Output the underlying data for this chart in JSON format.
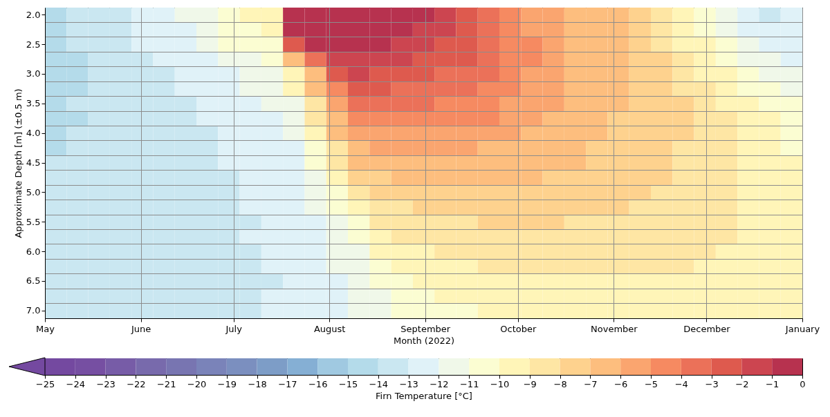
{
  "chart_data": {
    "type": "heatmap",
    "xlabel": "Month (2022)",
    "ylabel": "Approximate Depth [m] (±0.5 m)",
    "clabel": "Firn Temperature [°C]",
    "x": [
      "2022-05-04T12:00",
      "2022-05-11T12:00",
      "2022-05-18T12:00",
      "2022-05-25T12:00",
      "2022-06-01T12:00",
      "2022-06-08T12:00",
      "2022-06-15T12:00",
      "2022-06-22T12:00",
      "2022-06-29T12:00",
      "2022-07-06T12:00",
      "2022-07-13T12:00",
      "2022-07-20T12:00",
      "2022-07-27T12:00",
      "2022-08-03T12:00",
      "2022-08-10T12:00",
      "2022-08-17T12:00",
      "2022-08-24T12:00",
      "2022-08-31T12:00",
      "2022-09-07T12:00",
      "2022-09-14T12:00",
      "2022-09-21T12:00",
      "2022-09-28T12:00",
      "2022-10-05T12:00",
      "2022-10-12T12:00",
      "2022-10-19T12:00",
      "2022-10-26T12:00",
      "2022-11-02T12:00",
      "2022-11-09T12:00",
      "2022-11-16T12:00",
      "2022-11-23T12:00",
      "2022-11-30T12:00",
      "2022-12-07T12:00",
      "2022-12-14T12:00",
      "2022-12-21T12:00",
      "2022-12-28T12:00"
    ],
    "xlim": [
      "2022-05-01",
      "2023-01-01"
    ],
    "xticks": [
      {
        "value": "2022-05-01",
        "label": "May"
      },
      {
        "value": "2022-06-01",
        "label": "June"
      },
      {
        "value": "2022-07-01",
        "label": "July"
      },
      {
        "value": "2022-08-01",
        "label": "August"
      },
      {
        "value": "2022-09-01",
        "label": "September"
      },
      {
        "value": "2022-10-01",
        "label": "October"
      },
      {
        "value": "2022-11-01",
        "label": "November"
      },
      {
        "value": "2022-12-01",
        "label": "December"
      },
      {
        "value": "2023-01-01",
        "label": "January"
      }
    ],
    "y_categories": [
      "2.0",
      null,
      "2.5",
      null,
      "3.0",
      null,
      "3.5",
      null,
      "4.0",
      null,
      "4.5",
      null,
      "5.0",
      null,
      "5.5",
      null,
      "6.0",
      null,
      "6.5",
      null,
      "7.0"
    ],
    "cells": [
      [
        -14.5,
        -13.5,
        -13.5,
        -13.5,
        -12.5,
        -12.5,
        -11.5,
        -11.5,
        -10.5,
        -9.5,
        -9.5,
        -0.5,
        -0.5,
        -0.5,
        -0.5,
        -0.5,
        -0.5,
        -0.5,
        -1.5,
        -2.5,
        -3.5,
        -4.5,
        -5.5,
        -5.5,
        -6.5,
        -6.5,
        -6.5,
        -7.5,
        -8.5,
        -9.5,
        -10.5,
        -11.5,
        -12.5,
        -13.5,
        -12.5
      ],
      [
        -14.5,
        -13.5,
        -13.5,
        -13.5,
        -12.5,
        -12.5,
        -12.5,
        -11.5,
        -10.5,
        -10.5,
        -9.5,
        -0.5,
        -0.5,
        -0.5,
        -0.5,
        -0.5,
        -0.5,
        -1.5,
        -1.5,
        -2.5,
        -3.5,
        -4.5,
        -5.5,
        -5.5,
        -6.5,
        -6.5,
        -6.5,
        -7.5,
        -8.5,
        -9.5,
        -10.5,
        -11.5,
        -12.5,
        -12.5,
        -12.5
      ],
      [
        -14.5,
        -13.5,
        -13.5,
        -13.5,
        -12.5,
        -12.5,
        -12.5,
        -11.5,
        -10.5,
        -10.5,
        -10.5,
        -2.5,
        -0.5,
        -0.5,
        -0.5,
        -0.5,
        -1.5,
        -1.5,
        -2.5,
        -2.5,
        -3.5,
        -4.5,
        -4.5,
        -5.5,
        -6.5,
        -6.5,
        -6.5,
        -7.5,
        -8.5,
        -9.5,
        -9.5,
        -10.5,
        -11.5,
        -12.5,
        -12.5
      ],
      [
        -14.5,
        -14.5,
        -13.5,
        -13.5,
        -13.5,
        -12.5,
        -12.5,
        -12.5,
        -11.5,
        -11.5,
        -10.5,
        -6.5,
        -3.5,
        -1.5,
        -1.5,
        -1.5,
        -1.5,
        -2.5,
        -2.5,
        -2.5,
        -3.5,
        -4.5,
        -4.5,
        -5.5,
        -6.5,
        -6.5,
        -6.5,
        -7.5,
        -7.5,
        -8.5,
        -9.5,
        -10.5,
        -11.5,
        -11.5,
        -12.5
      ],
      [
        -14.5,
        -14.5,
        -13.5,
        -13.5,
        -13.5,
        -13.5,
        -12.5,
        -12.5,
        -12.5,
        -11.5,
        -11.5,
        -9.5,
        -6.5,
        -2.5,
        -1.5,
        -2.5,
        -2.5,
        -2.5,
        -3.5,
        -3.5,
        -3.5,
        -4.5,
        -5.5,
        -5.5,
        -6.5,
        -6.5,
        -6.5,
        -7.5,
        -7.5,
        -8.5,
        -9.5,
        -9.5,
        -10.5,
        -11.5,
        -11.5
      ],
      [
        -14.5,
        -14.5,
        -13.5,
        -13.5,
        -13.5,
        -13.5,
        -12.5,
        -12.5,
        -12.5,
        -11.5,
        -11.5,
        -9.5,
        -6.5,
        -4.5,
        -2.5,
        -2.5,
        -3.5,
        -3.5,
        -3.5,
        -3.5,
        -4.5,
        -4.5,
        -5.5,
        -5.5,
        -6.5,
        -6.5,
        -6.5,
        -7.5,
        -7.5,
        -8.5,
        -8.5,
        -9.5,
        -10.5,
        -10.5,
        -11.5
      ],
      [
        -14.5,
        -13.5,
        -13.5,
        -13.5,
        -13.5,
        -13.5,
        -13.5,
        -12.5,
        -12.5,
        -12.5,
        -11.5,
        -11.5,
        -8.5,
        -5.5,
        -3.5,
        -3.5,
        -3.5,
        -3.5,
        -4.5,
        -4.5,
        -4.5,
        -5.5,
        -5.5,
        -5.5,
        -6.5,
        -6.5,
        -6.5,
        -7.5,
        -7.5,
        -7.5,
        -8.5,
        -9.5,
        -9.5,
        -10.5,
        -10.5
      ],
      [
        -14.5,
        -14.5,
        -13.5,
        -13.5,
        -13.5,
        -13.5,
        -13.5,
        -12.5,
        -12.5,
        -12.5,
        -12.5,
        -11.5,
        -8.5,
        -6.5,
        -4.5,
        -4.5,
        -4.5,
        -4.5,
        -4.5,
        -4.5,
        -4.5,
        -5.5,
        -5.5,
        -6.5,
        -6.5,
        -6.5,
        -7.5,
        -7.5,
        -7.5,
        -7.5,
        -8.5,
        -8.5,
        -9.5,
        -9.5,
        -10.5
      ],
      [
        -14.5,
        -13.5,
        -13.5,
        -13.5,
        -13.5,
        -13.5,
        -13.5,
        -13.5,
        -12.5,
        -12.5,
        -12.5,
        -11.5,
        -9.5,
        -6.5,
        -5.5,
        -5.5,
        -5.5,
        -5.5,
        -5.5,
        -5.5,
        -5.5,
        -5.5,
        -6.5,
        -6.5,
        -6.5,
        -6.5,
        -7.5,
        -7.5,
        -7.5,
        -7.5,
        -8.5,
        -8.5,
        -9.5,
        -9.5,
        -10.5
      ],
      [
        -14.5,
        -13.5,
        -13.5,
        -13.5,
        -13.5,
        -13.5,
        -13.5,
        -13.5,
        -12.5,
        -12.5,
        -12.5,
        -12.5,
        -10.5,
        -8.5,
        -6.5,
        -5.5,
        -5.5,
        -5.5,
        -5.5,
        -5.5,
        -6.5,
        -6.5,
        -6.5,
        -6.5,
        -6.5,
        -7.5,
        -7.5,
        -7.5,
        -7.5,
        -8.5,
        -8.5,
        -8.5,
        -9.5,
        -9.5,
        -10.5
      ],
      [
        -13.5,
        -13.5,
        -13.5,
        -13.5,
        -13.5,
        -13.5,
        -13.5,
        -13.5,
        -12.5,
        -12.5,
        -12.5,
        -12.5,
        -10.5,
        -8.5,
        -6.5,
        -6.5,
        -6.5,
        -6.5,
        -6.5,
        -6.5,
        -6.5,
        -6.5,
        -6.5,
        -6.5,
        -6.5,
        -7.5,
        -7.5,
        -7.5,
        -7.5,
        -8.5,
        -8.5,
        -8.5,
        -9.5,
        -9.5,
        -9.5
      ],
      [
        -13.5,
        -13.5,
        -13.5,
        -13.5,
        -13.5,
        -13.5,
        -13.5,
        -13.5,
        -13.5,
        -12.5,
        -12.5,
        -12.5,
        -11.5,
        -9.5,
        -7.5,
        -7.5,
        -6.5,
        -6.5,
        -6.5,
        -6.5,
        -6.5,
        -6.5,
        -6.5,
        -7.5,
        -7.5,
        -7.5,
        -7.5,
        -7.5,
        -7.5,
        -8.5,
        -8.5,
        -8.5,
        -9.5,
        -9.5,
        -9.5
      ],
      [
        -13.5,
        -13.5,
        -13.5,
        -13.5,
        -13.5,
        -13.5,
        -13.5,
        -13.5,
        -13.5,
        -12.5,
        -12.5,
        -12.5,
        -11.5,
        -10.5,
        -8.5,
        -7.5,
        -7.5,
        -7.5,
        -7.5,
        -7.5,
        -7.5,
        -7.5,
        -7.5,
        -7.5,
        -7.5,
        -7.5,
        -7.5,
        -7.5,
        -8.5,
        -8.5,
        -8.5,
        -8.5,
        -9.5,
        -9.5,
        -9.5
      ],
      [
        -13.5,
        -13.5,
        -13.5,
        -13.5,
        -13.5,
        -13.5,
        -13.5,
        -13.5,
        -13.5,
        -12.5,
        -12.5,
        -12.5,
        -11.5,
        -10.5,
        -9.5,
        -8.5,
        -8.5,
        -7.5,
        -7.5,
        -7.5,
        -7.5,
        -7.5,
        -7.5,
        -7.5,
        -7.5,
        -7.5,
        -7.5,
        -8.5,
        -8.5,
        -8.5,
        -8.5,
        -8.5,
        -9.5,
        -9.5,
        -9.5
      ],
      [
        -13.5,
        -13.5,
        -13.5,
        -13.5,
        -13.5,
        -13.5,
        -13.5,
        -13.5,
        -13.5,
        -13.5,
        -12.5,
        -12.5,
        -12.5,
        -11.5,
        -10.5,
        -8.5,
        -8.5,
        -8.5,
        -8.5,
        -8.5,
        -7.5,
        -7.5,
        -7.5,
        -7.5,
        -8.5,
        -8.5,
        -8.5,
        -8.5,
        -8.5,
        -8.5,
        -8.5,
        -8.5,
        -9.5,
        -9.5,
        -9.5
      ],
      [
        -13.5,
        -13.5,
        -13.5,
        -13.5,
        -13.5,
        -13.5,
        -13.5,
        -13.5,
        -13.5,
        -12.5,
        -12.5,
        -12.5,
        -12.5,
        -11.5,
        -10.5,
        -9.5,
        -8.5,
        -8.5,
        -8.5,
        -8.5,
        -8.5,
        -8.5,
        -8.5,
        -8.5,
        -8.5,
        -8.5,
        -8.5,
        -8.5,
        -8.5,
        -8.5,
        -8.5,
        -8.5,
        -9.5,
        -9.5,
        -9.5
      ],
      [
        -13.5,
        -13.5,
        -13.5,
        -13.5,
        -13.5,
        -13.5,
        -13.5,
        -13.5,
        -13.5,
        -13.5,
        -12.5,
        -12.5,
        -12.5,
        -11.5,
        -11.5,
        -9.5,
        -9.5,
        -9.5,
        -8.5,
        -8.5,
        -8.5,
        -8.5,
        -8.5,
        -8.5,
        -8.5,
        -8.5,
        -8.5,
        -8.5,
        -8.5,
        -8.5,
        -8.5,
        -9.5,
        -9.5,
        -9.5,
        -9.5
      ],
      [
        -13.5,
        -13.5,
        -13.5,
        -13.5,
        -13.5,
        -13.5,
        -13.5,
        -13.5,
        -13.5,
        -13.5,
        -12.5,
        -12.5,
        -12.5,
        -11.5,
        -11.5,
        -10.5,
        -9.5,
        -9.5,
        -9.5,
        -9.5,
        -8.5,
        -8.5,
        -8.5,
        -8.5,
        -8.5,
        -8.5,
        -8.5,
        -8.5,
        -8.5,
        -8.5,
        -9.5,
        -9.5,
        -9.5,
        -9.5,
        -9.5
      ],
      [
        -13.5,
        -13.5,
        -13.5,
        -13.5,
        -13.5,
        -13.5,
        -13.5,
        -13.5,
        -13.5,
        -13.5,
        -13.5,
        -12.5,
        -12.5,
        -12.5,
        -11.5,
        -10.5,
        -10.5,
        -9.5,
        -9.5,
        -9.5,
        -9.5,
        -9.5,
        -9.5,
        -9.5,
        -9.5,
        -9.5,
        -9.5,
        -9.5,
        -9.5,
        -9.5,
        -9.5,
        -9.5,
        -9.5,
        -9.5,
        -9.5
      ],
      [
        -13.5,
        -13.5,
        -13.5,
        -13.5,
        -13.5,
        -13.5,
        -13.5,
        -13.5,
        -13.5,
        -13.5,
        -12.5,
        -12.5,
        -12.5,
        -12.5,
        -11.5,
        -11.5,
        -10.5,
        -10.5,
        -9.5,
        -9.5,
        -9.5,
        -9.5,
        -9.5,
        -9.5,
        -9.5,
        -9.5,
        -9.5,
        -9.5,
        -9.5,
        -9.5,
        -9.5,
        -9.5,
        -9.5,
        -9.5,
        -9.5
      ],
      [
        -13.5,
        -13.5,
        -13.5,
        -13.5,
        -13.5,
        -13.5,
        -13.5,
        -13.5,
        -13.5,
        -13.5,
        -12.5,
        -12.5,
        -12.5,
        -12.5,
        -11.5,
        -11.5,
        -10.5,
        -10.5,
        -10.5,
        -10.5,
        -9.5,
        -9.5,
        -9.5,
        -9.5,
        -9.5,
        -9.5,
        -9.5,
        -9.5,
        -9.5,
        -9.5,
        -9.5,
        -9.5,
        -9.5,
        -9.5,
        -9.5
      ]
    ],
    "clim": [
      -25,
      0
    ],
    "cticks": [
      {
        "value": -25,
        "label": "−25"
      },
      {
        "value": -24,
        "label": "−24"
      },
      {
        "value": -23,
        "label": "−23"
      },
      {
        "value": -22,
        "label": "−22"
      },
      {
        "value": -21,
        "label": "−21"
      },
      {
        "value": -20,
        "label": "−20"
      },
      {
        "value": -19,
        "label": "−19"
      },
      {
        "value": -18,
        "label": "−18"
      },
      {
        "value": -17,
        "label": "−17"
      },
      {
        "value": -16,
        "label": "−16"
      },
      {
        "value": -15,
        "label": "−15"
      },
      {
        "value": -14,
        "label": "−14"
      },
      {
        "value": -13,
        "label": "−13"
      },
      {
        "value": -12,
        "label": "−12"
      },
      {
        "value": -11,
        "label": "−11"
      },
      {
        "value": -10,
        "label": "−10"
      },
      {
        "value": -9,
        "label": "−9"
      },
      {
        "value": -8,
        "label": "−8"
      },
      {
        "value": -7,
        "label": "−7"
      },
      {
        "value": -6,
        "label": "−6"
      },
      {
        "value": -5,
        "label": "−5"
      },
      {
        "value": -4,
        "label": "−4"
      },
      {
        "value": -3,
        "label": "−3"
      },
      {
        "value": -2,
        "label": "−2"
      },
      {
        "value": -1,
        "label": "−1"
      },
      0
    ],
    "colors": [
      "#7449a0",
      "#764fa2",
      "#775ca7",
      "#786aac",
      "#7875b1",
      "#7a83b9",
      "#7b8fbf",
      "#7d9dc7",
      "#85afd4",
      "#a0c9e1",
      "#b4dbea",
      "#cae7f1",
      "#e0f2f8",
      "#f0f8e9",
      "#fbfdd2",
      "#fff5b8",
      "#fee6a4",
      "#fed28e",
      "#fdbe7e",
      "#faa56f",
      "#f68a61",
      "#eb7159",
      "#de5a4e",
      "#cc4550",
      "#b7324f"
    ],
    "grid": true
  }
}
